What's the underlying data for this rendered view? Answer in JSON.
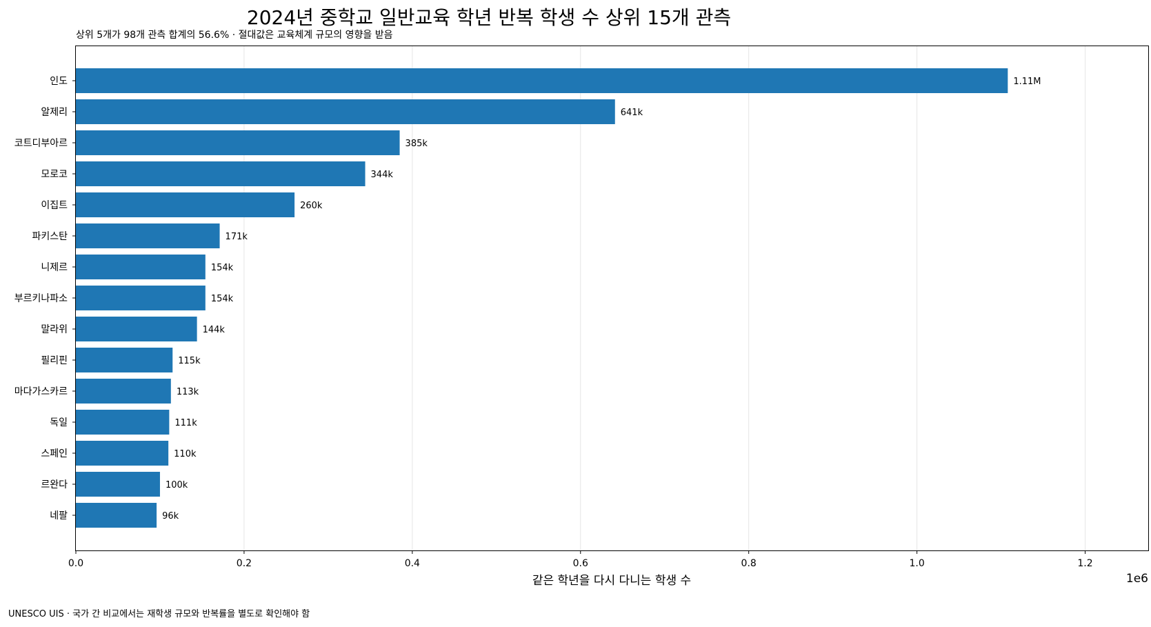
{
  "chart_data": {
    "type": "bar",
    "orientation": "horizontal",
    "title": "2024년 중학교 일반교육 학년 반복 학생 수 상위 15개 관측",
    "subtitle": "상위 5개가 98개 관측 합계의 56.6% · 절대값은 교육체계 규모의 영향을 받음",
    "xlabel": "같은 학년을 다시 다니는 학생 수",
    "x_offset_text": "1e6",
    "footnote": "UNESCO UIS · 국가 간 비교에서는 재학생 규모와 반복률을 별도로 확인해야 함",
    "xlim": [
      0,
      1275000
    ],
    "xticks": [
      {
        "value": 0,
        "label": "0.0"
      },
      {
        "value": 200000,
        "label": "0.2"
      },
      {
        "value": 400000,
        "label": "0.4"
      },
      {
        "value": 600000,
        "label": "0.6"
      },
      {
        "value": 800000,
        "label": "0.8"
      },
      {
        "value": 1000000,
        "label": "1.0"
      },
      {
        "value": 1200000,
        "label": "1.2"
      }
    ],
    "grid": "vertical",
    "bar_color": "#1f77b4",
    "categories": [
      "인도",
      "알제리",
      "코트디부아르",
      "모로코",
      "이집트",
      "파키스탄",
      "니제르",
      "부르키나파소",
      "말라위",
      "필리핀",
      "마다가스카르",
      "독일",
      "스페인",
      "르완다",
      "네팔"
    ],
    "values": [
      1108000,
      641000,
      385000,
      344000,
      260000,
      171000,
      154000,
      154000,
      144000,
      115000,
      113000,
      111000,
      110000,
      100000,
      96000
    ],
    "value_labels": [
      "1.11M",
      "641k",
      "385k",
      "344k",
      "260k",
      "171k",
      "154k",
      "154k",
      "144k",
      "115k",
      "113k",
      "111k",
      "110k",
      "100k",
      "96k"
    ]
  }
}
